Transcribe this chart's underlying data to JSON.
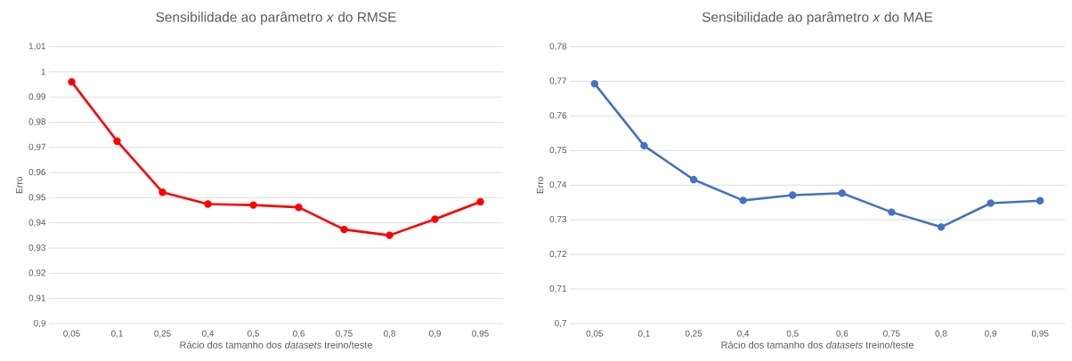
{
  "chart_data": [
    {
      "type": "line",
      "title": "Sensibilidade ao parâmetro *x* do RMSE",
      "xlabel": "Rácio dos tamanho dos *datasets* treino/teste",
      "ylabel": "Erro",
      "categories": [
        "0,05",
        "0,1",
        "0,25",
        "0,4",
        "0,5",
        "0,6",
        "0,75",
        "0,8",
        "0,9",
        "0,95"
      ],
      "series": [
        {
          "color": "#ff0000",
          "values": [
            0.996,
            0.9725,
            0.9522,
            0.9475,
            0.9471,
            0.9462,
            0.9374,
            0.9351,
            0.9415,
            0.9484
          ]
        }
      ],
      "ylim": [
        0.9,
        1.01
      ],
      "yticks": [
        {
          "value": 0.9,
          "label": "0,9"
        },
        {
          "value": 0.91,
          "label": "0,91"
        },
        {
          "value": 0.92,
          "label": "0,92"
        },
        {
          "value": 0.93,
          "label": "0,93"
        },
        {
          "value": 0.94,
          "label": "0,94"
        },
        {
          "value": 0.95,
          "label": "0,95"
        },
        {
          "value": 0.96,
          "label": "0,96"
        },
        {
          "value": 0.97,
          "label": "0,97"
        },
        {
          "value": 0.98,
          "label": "0,98"
        },
        {
          "value": 0.99,
          "label": "0,99"
        },
        1,
        {
          "value": 1.01,
          "label": "1,01"
        }
      ],
      "grid": "y",
      "marker": "circle",
      "line_style": "solid"
    },
    {
      "type": "line",
      "title": "Sensibilidade ao parâmetro *x* do MAE",
      "xlabel": "Rácio dos tamanho dos *datasets* treino/teste",
      "ylabel": "Erro",
      "categories": [
        "0,05",
        "0,1",
        "0,25",
        "0,4",
        "0,5",
        "0,6",
        "0,75",
        "0,8",
        "0,9",
        "0,95"
      ],
      "series": [
        {
          "color": "#4472c4",
          "values": [
            0.7693,
            0.7514,
            0.7416,
            0.7356,
            0.7371,
            0.7377,
            0.7322,
            0.7279,
            0.7348,
            0.7355
          ]
        }
      ],
      "ylim": [
        0.7,
        0.78
      ],
      "yticks": [
        {
          "value": 0.7,
          "label": "0,7"
        },
        {
          "value": 0.71,
          "label": "0,71"
        },
        {
          "value": 0.72,
          "label": "0,72"
        },
        {
          "value": 0.73,
          "label": "0,73"
        },
        {
          "value": 0.74,
          "label": "0,74"
        },
        {
          "value": 0.75,
          "label": "0,75"
        },
        {
          "value": 0.76,
          "label": "0,76"
        },
        {
          "value": 0.77,
          "label": "0,77"
        },
        {
          "value": 0.78,
          "label": "0,78"
        }
      ],
      "grid": "y",
      "marker": "circle",
      "line_style": "solid"
    }
  ]
}
